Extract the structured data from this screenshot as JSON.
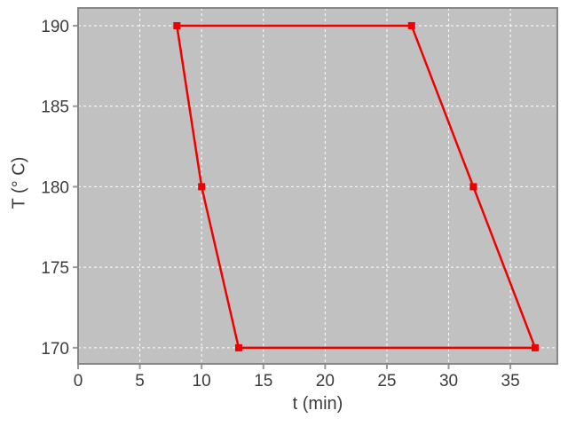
{
  "chart_data": {
    "type": "line",
    "title": "",
    "xlabel": "t (min)",
    "ylabel": "T (° C)",
    "series": [
      {
        "closed": true,
        "color": "#ee0000",
        "marker": "square",
        "marker_size": 8,
        "line_width": 2.5,
        "points": [
          [
            8,
            190
          ],
          [
            27,
            190
          ],
          [
            32,
            180
          ],
          [
            37,
            170
          ],
          [
            13,
            170
          ],
          [
            10,
            180
          ]
        ]
      }
    ],
    "xticks": [
      0,
      5,
      10,
      15,
      20,
      25,
      30,
      35
    ],
    "yticks": [
      170,
      175,
      180,
      185,
      190
    ],
    "xlim": [
      0,
      38.8
    ],
    "ylim": [
      169,
      191.1
    ],
    "grid": {
      "style": "dashed",
      "color": "#ffffff"
    },
    "legend": "none",
    "colors": {
      "page_background": "#ffffff",
      "plot_background": "#c1c1c1",
      "frame": "#878787",
      "tick": "#999999",
      "text": "#3c3c3c"
    }
  }
}
